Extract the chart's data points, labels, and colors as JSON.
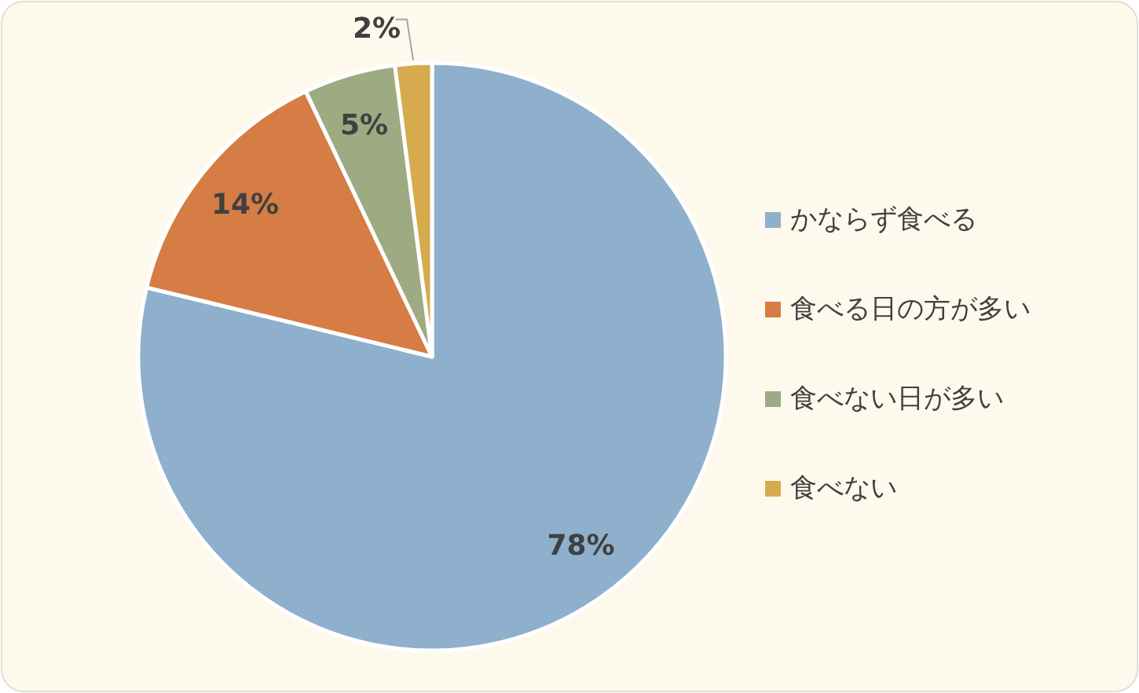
{
  "chart_data": {
    "type": "pie",
    "categories": [
      "かならず食べる",
      "食べる日の方が多い",
      "食べない日が多い",
      "食べない"
    ],
    "values": [
      78,
      14,
      5,
      2
    ],
    "colors": [
      "#8fb0cc",
      "#d67d45",
      "#9eaa82",
      "#d6ab4e"
    ],
    "value_labels": [
      "78%",
      "14%",
      "5%",
      "2%"
    ],
    "legend": "right"
  }
}
